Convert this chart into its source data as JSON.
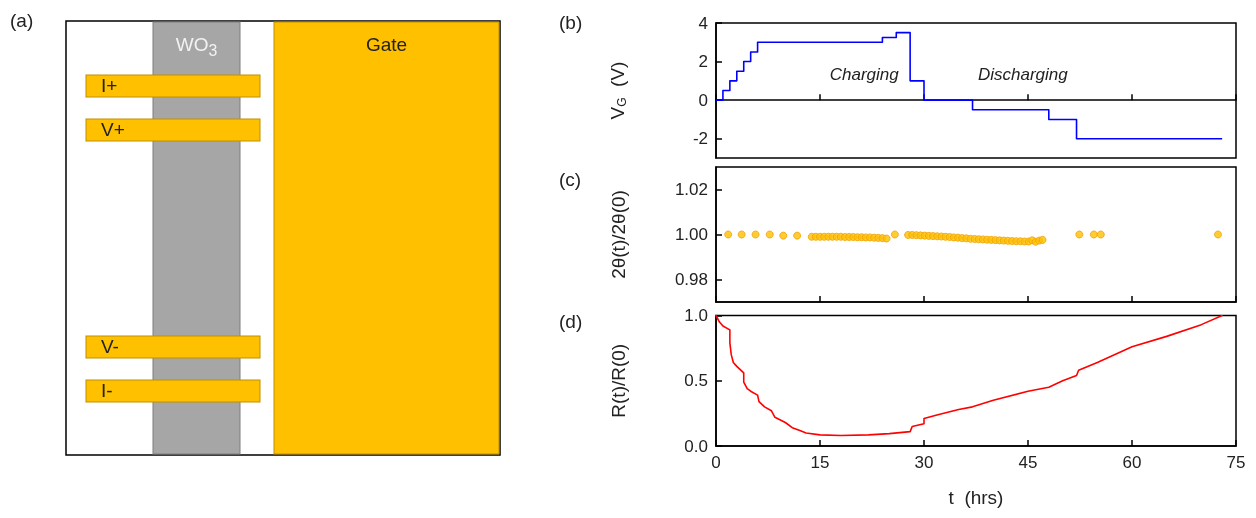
{
  "chart_data": [
    {
      "type": "other",
      "title": "(a)",
      "annotations": [
        "WO$_{3}$",
        "Gate",
        "I+",
        "V+",
        "V-",
        "I-"
      ]
    },
    {
      "type": "step",
      "title": "(b)",
      "ylabel": "V$_{G}$  (V)",
      "color": "#0000ff",
      "x": [
        0,
        1,
        2,
        3,
        4,
        5,
        6,
        24,
        26,
        28,
        30,
        37,
        48,
        52,
        73
      ],
      "values": [
        0,
        0,
        0.5,
        1,
        1.5,
        2,
        2.5,
        3,
        3.25,
        3.5,
        1,
        0,
        -0.5,
        -1,
        -2
      ],
      "xlim": [
        0,
        75
      ],
      "xticks": [
        0,
        15,
        30,
        45,
        60,
        75
      ],
      "ylim": [
        -3,
        4
      ],
      "yticks": [
        -2,
        0,
        2,
        4
      ],
      "tick_labels": "y",
      "annotations": [
        "Charging",
        "Discharging"
      ]
    },
    {
      "type": "scatter",
      "title": "(c)",
      "ylabel": "2θ(t)/2θ(0)",
      "color": "#ffc000",
      "marker": "circle",
      "x": [
        1.75,
        3.7,
        5.7,
        7.75,
        9.7,
        11.7,
        13.8,
        14.4,
        15.0,
        15.6,
        16.2,
        16.8,
        17.4,
        18.0,
        18.6,
        19.2,
        19.8,
        20.4,
        21.0,
        21.6,
        22.2,
        22.8,
        23.4,
        24.0,
        24.6,
        25.8,
        27.7,
        28.3,
        28.9,
        29.5,
        30.1,
        30.7,
        31.3,
        31.9,
        32.5,
        33.1,
        33.7,
        34.3,
        34.9,
        35.5,
        36.1,
        36.7,
        37.3,
        37.9,
        38.5,
        39.1,
        39.7,
        40.3,
        40.9,
        41.5,
        42.1,
        42.7,
        43.3,
        43.9,
        44.5,
        45.1,
        45.6,
        46.1,
        46.6,
        47.1,
        52.4,
        54.5,
        55.5,
        72.4
      ],
      "values": [
        1.0,
        1.0,
        1.0,
        1.0,
        0.9995,
        0.9995,
        0.999,
        0.999,
        0.999,
        0.999,
        0.999,
        0.999,
        0.999,
        0.999,
        0.9989,
        0.9989,
        0.9989,
        0.9988,
        0.9988,
        0.9987,
        0.9987,
        0.9986,
        0.9985,
        0.9984,
        0.9982,
        1.0,
        0.9998,
        0.9998,
        0.9997,
        0.9996,
        0.9995,
        0.9994,
        0.9993,
        0.9992,
        0.9991,
        0.999,
        0.9989,
        0.9987,
        0.9986,
        0.9984,
        0.9983,
        0.9981,
        0.998,
        0.9979,
        0.9978,
        0.9977,
        0.9976,
        0.9975,
        0.9974,
        0.9973,
        0.9972,
        0.9971,
        0.997,
        0.997,
        0.9969,
        0.9969,
        0.9974,
        0.9968,
        0.9973,
        0.9976,
        1.0,
        1.0,
        1.0,
        1.0
      ],
      "xlim": [
        0,
        75
      ],
      "xticks": [
        0,
        15,
        30,
        45,
        60,
        75
      ],
      "ylim": [
        0.97,
        1.03
      ],
      "yticks": [
        0.98,
        {
          "value": 1,
          "label": "1.00"
        },
        1.02
      ],
      "tick_labels": "y"
    },
    {
      "type": "line",
      "title": "(d)",
      "xlabel": "t  (hrs)",
      "ylabel": "R(t)/R(0)",
      "color": "#ff0000",
      "x": [
        0,
        0.5,
        1,
        2,
        2,
        2.2,
        2.5,
        3,
        4,
        4,
        4.5,
        5,
        6,
        6.2,
        7,
        8,
        8.5,
        10,
        11,
        12,
        13,
        15,
        18,
        22,
        25,
        28,
        28.3,
        30,
        30,
        32,
        35,
        37,
        40,
        45,
        48,
        50,
        52,
        52.3,
        55,
        60,
        65,
        70,
        73
      ],
      "values": [
        1.0,
        0.95,
        0.92,
        0.89,
        0.79,
        0.7,
        0.64,
        0.61,
        0.56,
        0.49,
        0.44,
        0.42,
        0.39,
        0.34,
        0.3,
        0.27,
        0.22,
        0.18,
        0.14,
        0.12,
        0.1,
        0.085,
        0.08,
        0.085,
        0.095,
        0.11,
        0.15,
        0.17,
        0.21,
        0.24,
        0.28,
        0.3,
        0.35,
        0.42,
        0.45,
        0.5,
        0.54,
        0.58,
        0.64,
        0.76,
        0.84,
        0.93,
        1.0
      ],
      "xlim": [
        0,
        75
      ],
      "xticks": [
        0,
        15,
        30,
        45,
        60,
        75
      ],
      "ylim": [
        0,
        1
      ],
      "yticks": [
        {
          "value": 0,
          "label": "0.0"
        },
        {
          "value": 0.5,
          "label": "0.5"
        },
        {
          "value": 1,
          "label": "1.0"
        }
      ]
    }
  ]
}
